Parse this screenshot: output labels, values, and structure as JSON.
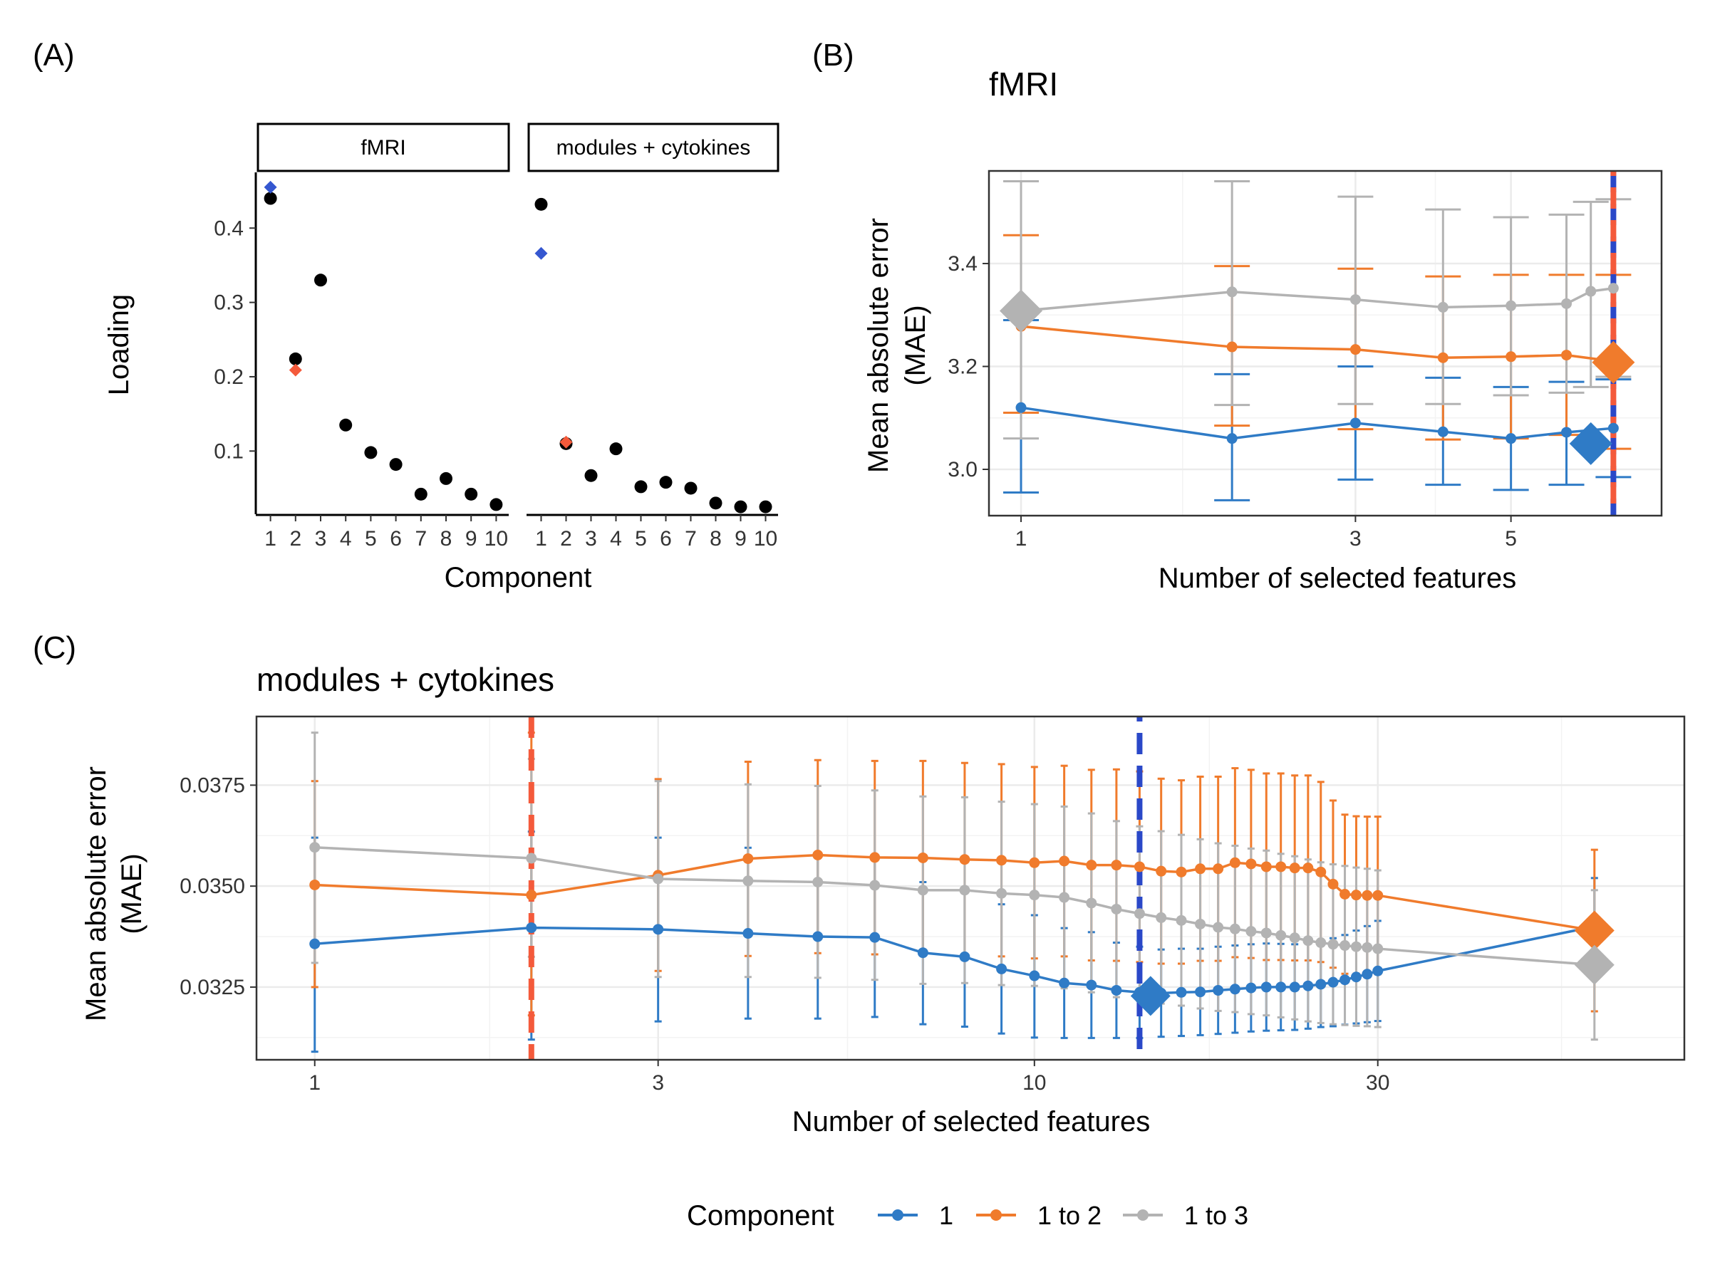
{
  "panel_labels": {
    "a": "(A)",
    "b": "(B)",
    "c": "(C)"
  },
  "colors": {
    "comp1": "#2f7bc6",
    "comp12": "#f07b2c",
    "comp13": "#b3b3b3",
    "loading_blue": "#3557d0",
    "loading_red": "#f45a3b",
    "vline_blue": "#2a48c8",
    "vline_red": "#f45a3b",
    "grid": "#ebebeb"
  },
  "legend": {
    "title": "Component",
    "items": [
      {
        "label": "1",
        "color": "#2f7bc6"
      },
      {
        "label": "1 to 2",
        "color": "#f07b2c"
      },
      {
        "label": "1 to 3",
        "color": "#b3b3b3"
      }
    ]
  },
  "chart_data": [
    {
      "id": "A",
      "type": "scatter",
      "xlabel": "Component",
      "ylabel": "Loading",
      "ylim": [
        0.015,
        0.475
      ],
      "yticks": [
        0.1,
        0.2,
        0.3,
        0.4
      ],
      "ytick_labels": [
        "0.1",
        "0.2",
        "0.3",
        "0.4"
      ],
      "facets": [
        {
          "strip": "fMRI",
          "x": [
            1,
            2,
            3,
            4,
            5,
            6,
            7,
            8,
            9,
            10
          ],
          "xtick_labels": [
            "1",
            "2",
            "3",
            "4",
            "5",
            "6",
            "7",
            "8",
            "9",
            "10"
          ],
          "values": [
            0.44,
            0.224,
            0.33,
            0.135,
            0.098,
            0.082,
            0.042,
            0.063,
            0.042,
            0.028
          ],
          "highlights": [
            {
              "x": 1,
              "y": 0.455,
              "color": "#3557d0"
            },
            {
              "x": 2,
              "y": 0.209,
              "color": "#f45a3b"
            }
          ]
        },
        {
          "strip": "modules + cytokines",
          "x": [
            1,
            2,
            3,
            4,
            5,
            6,
            7,
            8,
            9,
            10
          ],
          "xtick_labels": [
            "1",
            "2",
            "3",
            "4",
            "5",
            "6",
            "7",
            "8",
            "9",
            "10"
          ],
          "values": [
            0.432,
            0.11,
            0.067,
            0.103,
            0.052,
            0.058,
            0.05,
            0.03,
            0.025,
            0.025
          ],
          "highlights": [
            {
              "x": 1,
              "y": 0.366,
              "color": "#3557d0"
            },
            {
              "x": 2,
              "y": 0.112,
              "color": "#f45a3b"
            }
          ]
        }
      ]
    },
    {
      "id": "B",
      "type": "line",
      "title": "fMRI",
      "xlabel": "Number of selected features",
      "ylabel_lines": [
        "Mean absolute error",
        "(MAE)"
      ],
      "xscale": "log",
      "xlim": [
        0.9,
        8.2
      ],
      "ylim": [
        2.91,
        3.58
      ],
      "xticks": [
        1,
        3,
        5
      ],
      "xtick_labels": [
        "1",
        "3",
        "5"
      ],
      "yticks": [
        3.0,
        3.2,
        3.4
      ],
      "ytick_labels": [
        "3.0",
        "3.2",
        "3.4"
      ],
      "vlines": [
        {
          "x": 7,
          "color": "#2a48c8"
        },
        {
          "x": 7,
          "color": "#f45a3b"
        }
      ],
      "series": [
        {
          "name": "1",
          "color": "#2f7bc6",
          "x": [
            1,
            2,
            3,
            4,
            5,
            6,
            7
          ],
          "y": [
            3.12,
            3.06,
            3.09,
            3.073,
            3.06,
            3.072,
            3.08
          ],
          "lo": [
            2.955,
            2.94,
            2.98,
            2.97,
            2.96,
            2.97,
            2.985
          ],
          "hi": [
            3.29,
            3.185,
            3.2,
            3.178,
            3.16,
            3.17,
            3.175
          ],
          "best": {
            "x": 6.5,
            "y": 3.05
          }
        },
        {
          "name": "1 to 2",
          "color": "#f07b2c",
          "x": [
            1,
            2,
            3,
            4,
            5,
            6,
            7
          ],
          "y": [
            3.278,
            3.238,
            3.233,
            3.217,
            3.219,
            3.222,
            3.21
          ],
          "lo": [
            3.11,
            3.085,
            3.078,
            3.058,
            3.06,
            3.067,
            3.04
          ],
          "hi": [
            3.455,
            3.395,
            3.39,
            3.375,
            3.378,
            3.378,
            3.378
          ],
          "best": {
            "x": 7,
            "y": 3.208
          }
        },
        {
          "name": "1 to 3",
          "color": "#b3b3b3",
          "x": [
            1,
            2,
            3,
            4,
            5,
            6,
            6.5,
            7
          ],
          "y": [
            3.308,
            3.345,
            3.33,
            3.315,
            3.318,
            3.322,
            3.346,
            3.352
          ],
          "lo": [
            3.06,
            3.125,
            3.127,
            3.127,
            3.144,
            3.149,
            3.16,
            3.18
          ],
          "hi": [
            3.56,
            3.56,
            3.53,
            3.505,
            3.49,
            3.495,
            3.52,
            3.525
          ],
          "best": {
            "x": 1,
            "y": 3.308
          }
        }
      ]
    },
    {
      "id": "C",
      "type": "line",
      "title": "modules + cytokines",
      "xlabel": "Number of selected features",
      "ylabel_lines": [
        "Mean absolute error",
        "(MAE)"
      ],
      "xscale": "log",
      "xlim": [
        0.83,
        80
      ],
      "ylim": [
        0.0307,
        0.0392
      ],
      "xticks": [
        1,
        3,
        10,
        30
      ],
      "xtick_labels": [
        "1",
        "3",
        "10",
        "30"
      ],
      "yticks": [
        0.0325,
        0.035,
        0.0375
      ],
      "ytick_labels": [
        "0.0325",
        "0.0350",
        "0.0375"
      ],
      "vlines": [
        {
          "x": 2,
          "color": "#f45a3b"
        },
        {
          "x": 14,
          "color": "#2a48c8"
        }
      ],
      "series": [
        {
          "name": "1",
          "color": "#2f7bc6",
          "x": [
            1,
            2,
            3,
            4,
            5,
            6,
            7,
            8,
            9,
            10,
            11,
            12,
            13,
            14,
            15,
            16,
            17,
            18,
            19,
            20,
            21,
            22,
            23,
            24,
            25,
            26,
            27,
            28,
            29,
            30,
            60
          ],
          "y": [
            0.03357,
            0.03397,
            0.03393,
            0.03383,
            0.03375,
            0.03373,
            0.03335,
            0.03325,
            0.03295,
            0.03278,
            0.0326,
            0.03255,
            0.03242,
            0.03237,
            0.03235,
            0.03237,
            0.03238,
            0.03242,
            0.03245,
            0.03248,
            0.0325,
            0.0325,
            0.0325,
            0.03253,
            0.03257,
            0.03262,
            0.03268,
            0.03275,
            0.03282,
            0.0329,
            0.034
          ],
          "lo": [
            0.0309,
            0.0312,
            0.03165,
            0.03172,
            0.03172,
            0.03176,
            0.03158,
            0.03152,
            0.03135,
            0.03125,
            0.03124,
            0.03124,
            0.03124,
            0.03124,
            0.03127,
            0.03129,
            0.03131,
            0.03134,
            0.03137,
            0.0314,
            0.03142,
            0.03143,
            0.03144,
            0.03147,
            0.03151,
            0.03153,
            0.03157,
            0.0316,
            0.03163,
            0.03166,
            0.0328
          ],
          "hi": [
            0.0362,
            0.03635,
            0.0362,
            0.03595,
            0.0358,
            0.03572,
            0.0351,
            0.03495,
            0.03455,
            0.03428,
            0.03396,
            0.03386,
            0.0336,
            0.0335,
            0.03343,
            0.03345,
            0.03345,
            0.0335,
            0.03353,
            0.03356,
            0.03358,
            0.03357,
            0.03356,
            0.03359,
            0.03363,
            0.03371,
            0.03379,
            0.0339,
            0.03401,
            0.03414,
            0.0352
          ],
          "best": {
            "x": 14.5,
            "y": 0.03228
          }
        },
        {
          "name": "1 to 2",
          "color": "#f07b2c",
          "x": [
            1,
            2,
            3,
            4,
            5,
            6,
            7,
            8,
            9,
            10,
            11,
            12,
            13,
            14,
            15,
            16,
            17,
            18,
            19,
            20,
            21,
            22,
            23,
            24,
            25,
            26,
            27,
            28,
            29,
            30,
            60
          ],
          "y": [
            0.03503,
            0.03478,
            0.03527,
            0.03568,
            0.03577,
            0.03571,
            0.0357,
            0.03566,
            0.03564,
            0.03558,
            0.03562,
            0.03552,
            0.03552,
            0.03548,
            0.03537,
            0.03535,
            0.03543,
            0.03543,
            0.03558,
            0.03555,
            0.03548,
            0.03548,
            0.03545,
            0.03545,
            0.03535,
            0.03505,
            0.0348,
            0.03478,
            0.03477,
            0.03477,
            0.0339
          ],
          "lo": [
            0.0325,
            0.0318,
            0.0329,
            0.03327,
            0.03334,
            0.03331,
            0.0333,
            0.03328,
            0.03326,
            0.03321,
            0.03326,
            0.03316,
            0.03315,
            0.03312,
            0.03308,
            0.03308,
            0.03315,
            0.03315,
            0.03324,
            0.03322,
            0.03317,
            0.03317,
            0.03316,
            0.03316,
            0.03312,
            0.03298,
            0.03283,
            0.03283,
            0.03282,
            0.03282,
            0.0319
          ],
          "hi": [
            0.0376,
            0.0388,
            0.03765,
            0.03808,
            0.03812,
            0.0381,
            0.0381,
            0.03805,
            0.03802,
            0.03795,
            0.03798,
            0.03788,
            0.03789,
            0.03784,
            0.03766,
            0.03762,
            0.03771,
            0.03771,
            0.03792,
            0.03788,
            0.03779,
            0.03779,
            0.03774,
            0.03774,
            0.03758,
            0.03712,
            0.03677,
            0.03673,
            0.03672,
            0.03672,
            0.0359
          ],
          "best": {
            "x": 60,
            "y": 0.0339
          }
        },
        {
          "name": "1 to 3",
          "color": "#b3b3b3",
          "x": [
            1,
            2,
            3,
            4,
            5,
            6,
            7,
            8,
            9,
            10,
            11,
            12,
            13,
            14,
            15,
            16,
            17,
            18,
            19,
            20,
            21,
            22,
            23,
            24,
            25,
            26,
            27,
            28,
            29,
            30,
            60
          ],
          "y": [
            0.03596,
            0.03569,
            0.03518,
            0.03513,
            0.0351,
            0.03502,
            0.0349,
            0.0349,
            0.03482,
            0.03478,
            0.03472,
            0.03458,
            0.03443,
            0.03432,
            0.03422,
            0.03415,
            0.03406,
            0.03398,
            0.03394,
            0.03388,
            0.03384,
            0.03378,
            0.03372,
            0.03365,
            0.0336,
            0.03356,
            0.03353,
            0.0335,
            0.03348,
            0.03345,
            0.03305
          ],
          "lo": [
            0.0331,
            0.03325,
            0.03275,
            0.03275,
            0.03273,
            0.03268,
            0.03258,
            0.0326,
            0.03255,
            0.03253,
            0.03247,
            0.03237,
            0.03225,
            0.03216,
            0.03209,
            0.03204,
            0.03197,
            0.03191,
            0.03188,
            0.03183,
            0.0318,
            0.03175,
            0.0317,
            0.03165,
            0.03161,
            0.03158,
            0.03156,
            0.03154,
            0.03153,
            0.03151,
            0.0312
          ],
          "hi": [
            0.0388,
            0.03815,
            0.0376,
            0.03752,
            0.03748,
            0.03737,
            0.03722,
            0.0372,
            0.03709,
            0.03703,
            0.03697,
            0.0368,
            0.03661,
            0.03648,
            0.03636,
            0.03627,
            0.03616,
            0.03606,
            0.036,
            0.03593,
            0.03588,
            0.0358,
            0.03574,
            0.03566,
            0.03559,
            0.03554,
            0.0355,
            0.03546,
            0.03543,
            0.03539,
            0.0349
          ],
          "best": {
            "x": 60,
            "y": 0.03305
          }
        }
      ]
    }
  ]
}
